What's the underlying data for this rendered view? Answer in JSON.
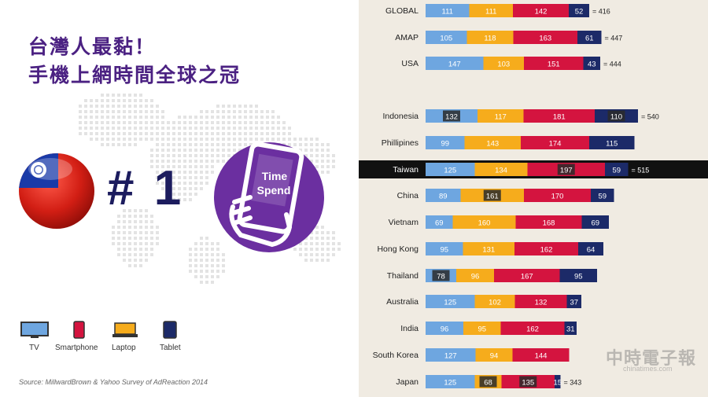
{
  "headline": {
    "line1": "台灣人最黏！",
    "line2": "手機上網時間全球之冠"
  },
  "rank_text": "# 1",
  "badge": {
    "line1": "Time",
    "line2": "Spend",
    "icon": "phone-in-hand-icon",
    "color": "#6b2fa0"
  },
  "flag_icon": "taiwan-flag-icon",
  "legend": [
    {
      "label": "TV",
      "icon": "tv-icon",
      "color": "#6ea6e0"
    },
    {
      "label": "Smartphone",
      "icon": "smartphone-icon",
      "color": "#d4143f"
    },
    {
      "label": "Laptop",
      "icon": "laptop-icon",
      "color": "#f6ac1c"
    },
    {
      "label": "Tablet",
      "icon": "tablet-icon",
      "color": "#1c2a68"
    }
  ],
  "source": "Source: MillwardBrown & Yahoo Survey of AdReaction 2014",
  "watermark": {
    "main": "中時電子報",
    "sub": "chinatimes.com"
  },
  "chart_data": {
    "type": "bar",
    "stacked": true,
    "orientation": "horizontal",
    "segment_order": [
      "TV",
      "Laptop",
      "Smartphone",
      "Tablet"
    ],
    "colors": {
      "TV": "#6ea6e0",
      "Laptop": "#f6ac1c",
      "Smartphone": "#d4143f",
      "Tablet": "#1c2a68"
    },
    "highlight_category": "Taiwan",
    "rows": [
      {
        "category": "GLOBAL",
        "values": [
          111,
          111,
          142,
          52
        ],
        "total_label": "= 416",
        "group": "summary"
      },
      {
        "category": "AMAP",
        "values": [
          105,
          118,
          163,
          61
        ],
        "total_label": "= 447",
        "group": "summary"
      },
      {
        "category": "USA",
        "values": [
          147,
          103,
          151,
          43
        ],
        "total_label": "= 444",
        "group": "summary"
      },
      {
        "category": "Indonesia",
        "values": [
          132,
          117,
          181,
          110
        ],
        "total_label": "= 540",
        "group": "market",
        "boxed": [
          0,
          3
        ]
      },
      {
        "category": "Phillipines",
        "values": [
          99,
          143,
          174,
          115
        ],
        "total_label": "",
        "group": "market"
      },
      {
        "category": "Taiwan",
        "values": [
          125,
          134,
          197,
          59
        ],
        "total_label": "= 515",
        "group": "market",
        "boxed": [
          2
        ]
      },
      {
        "category": "China",
        "values": [
          89,
          161,
          170,
          59
        ],
        "total_label": "",
        "group": "market",
        "boxed": [
          1
        ]
      },
      {
        "category": "Vietnam",
        "values": [
          69,
          160,
          168,
          69
        ],
        "total_label": "",
        "group": "market"
      },
      {
        "category": "Hong Kong",
        "values": [
          95,
          131,
          162,
          64
        ],
        "total_label": "",
        "group": "market"
      },
      {
        "category": "Thailand",
        "values": [
          78,
          96,
          167,
          95
        ],
        "total_label": "",
        "group": "market",
        "boxed": [
          0
        ]
      },
      {
        "category": "Australia",
        "values": [
          125,
          102,
          132,
          37
        ],
        "total_label": "",
        "group": "market"
      },
      {
        "category": "India",
        "values": [
          96,
          95,
          162,
          31
        ],
        "total_label": "",
        "group": "market"
      },
      {
        "category": "South Korea",
        "values": [
          127,
          94,
          144,
          0
        ],
        "total_label": "",
        "group": "market"
      },
      {
        "category": "Japan",
        "values": [
          125,
          68,
          135,
          15
        ],
        "total_label": "= 343",
        "group": "market",
        "boxed": [
          1,
          2
        ]
      }
    ]
  }
}
